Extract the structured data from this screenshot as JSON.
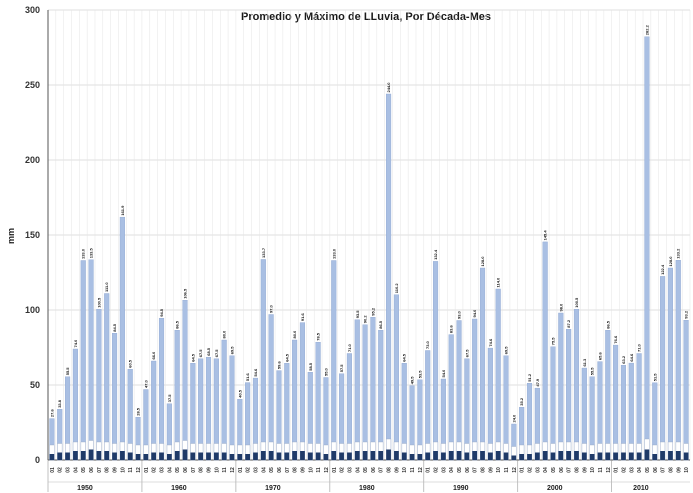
{
  "chart_data": {
    "type": "bar",
    "title": "Promedio y Máximo de LLuvia, Por Década-Mes",
    "ylabel": "mm",
    "xlabel": "",
    "ylim": [
      0,
      300
    ],
    "yticks": [
      0,
      50,
      100,
      150,
      200,
      250,
      300
    ],
    "grid": true,
    "month_labels": [
      "01",
      "02",
      "03",
      "04",
      "05",
      "06",
      "07",
      "08",
      "09",
      "10",
      "11",
      "12"
    ],
    "decades": [
      "1950",
      "1960",
      "1970",
      "1980",
      "1990",
      "2000",
      "2010"
    ],
    "series": [
      {
        "name": "",
        "color": "#a9bfe3",
        "values": [
          27.6,
          33.8,
          55.5,
          74.0,
          133.0,
          133.5,
          100.5,
          111.0,
          84.5,
          161.9,
          60.5,
          28.5,
          47.0,
          66.0,
          94.5,
          37.5,
          86.5,
          106.5,
          64.5,
          67.5,
          68.5,
          67.5,
          80.0,
          69.5,
          40.5,
          51.6,
          54.6,
          133.7,
          97.0,
          59.6,
          64.5,
          80.0,
          91.6,
          58.5,
          78.5,
          55.0,
          133.0,
          57.5,
          71.0,
          93.5,
          90.2,
          95.2,
          86.5,
          244.0,
          110.2,
          64.5,
          49.5,
          53.5,
          73.0,
          132.4,
          54.0,
          83.6,
          93.0,
          67.5,
          94.0,
          128.0,
          74.6,
          114.0,
          69.5,
          24.0,
          35.2,
          51.2,
          47.9,
          145.4,
          75.5,
          98.0,
          87.2,
          100.5,
          61.3,
          55.5,
          65.6,
          86.5,
          76.6,
          63.2,
          64.6,
          71.0,
          282.2,
          51.5,
          122.4,
          128.0,
          133.2,
          93.2
        ]
      },
      {
        "name": "",
        "color": "#ffffff",
        "values": [
          10,
          11,
          11,
          12,
          12,
          13,
          12,
          12,
          11,
          12,
          11,
          10,
          10,
          11,
          11,
          10,
          12,
          13,
          11,
          11,
          11,
          11,
          11,
          10,
          10,
          10,
          11,
          12,
          12,
          11,
          11,
          12,
          12,
          11,
          11,
          10,
          12,
          11,
          11,
          12,
          12,
          12,
          12,
          14,
          12,
          11,
          10,
          10,
          11,
          12,
          11,
          12,
          12,
          11,
          12,
          12,
          11,
          12,
          11,
          9,
          10,
          10,
          11,
          12,
          11,
          12,
          12,
          12,
          11,
          10,
          11,
          11,
          11,
          11,
          11,
          11,
          14,
          10,
          12,
          12,
          12,
          11
        ]
      },
      {
        "name": "",
        "color": "#1f3a68",
        "values": [
          4,
          5,
          5,
          6,
          6,
          7,
          6,
          6,
          5,
          6,
          5,
          4,
          4,
          5,
          5,
          4,
          6,
          7,
          5,
          5,
          5,
          5,
          5,
          4,
          4,
          4,
          5,
          6,
          6,
          5,
          5,
          6,
          6,
          5,
          5,
          4,
          6,
          5,
          5,
          6,
          6,
          6,
          6,
          7,
          6,
          5,
          4,
          4,
          5,
          6,
          5,
          6,
          6,
          5,
          6,
          6,
          5,
          6,
          5,
          3,
          4,
          4,
          5,
          6,
          5,
          6,
          6,
          6,
          5,
          4,
          5,
          5,
          5,
          5,
          5,
          5,
          7,
          4,
          6,
          6,
          6,
          5
        ]
      }
    ],
    "data_labels": [
      "27.6",
      "33.8",
      "55.5",
      "74.0",
      "133.0",
      "133.5",
      "100.5",
      "111.0",
      "84.5",
      "161.9",
      "60.5",
      "28.5",
      "47.0",
      "66.0",
      "94.5",
      "37.5",
      "86.5",
      "106.5",
      "64.5",
      "67.5",
      "68.5",
      "67.5",
      "80.0",
      "69.5",
      "40.5",
      "51.6",
      "54.6",
      "133.7",
      "97.0",
      "59.6",
      "64.5",
      "80.0",
      "91.6",
      "58.5",
      "78.5",
      "55.0",
      "133.0",
      "57.5",
      "71.0",
      "93.5",
      "90.2",
      "95.2",
      "86.5",
      "244.0",
      "110.2",
      "64.5",
      "49.5",
      "53.5",
      "73.0",
      "132.4",
      "54.0",
      "83.6",
      "93.0",
      "67.5",
      "94.0",
      "128.0",
      "74.6",
      "114.0",
      "69.5",
      "24.0",
      "35.2",
      "51.2",
      "47.9",
      "145.4",
      "75.5",
      "98.0",
      "87.2",
      "100.5",
      "61.3",
      "55.5",
      "65.6",
      "86.5",
      "76.6",
      "63.2",
      "64.6",
      "71.0",
      "282.2",
      "51.5",
      "122.4",
      "128.0",
      "133.2",
      "93.2"
    ]
  }
}
